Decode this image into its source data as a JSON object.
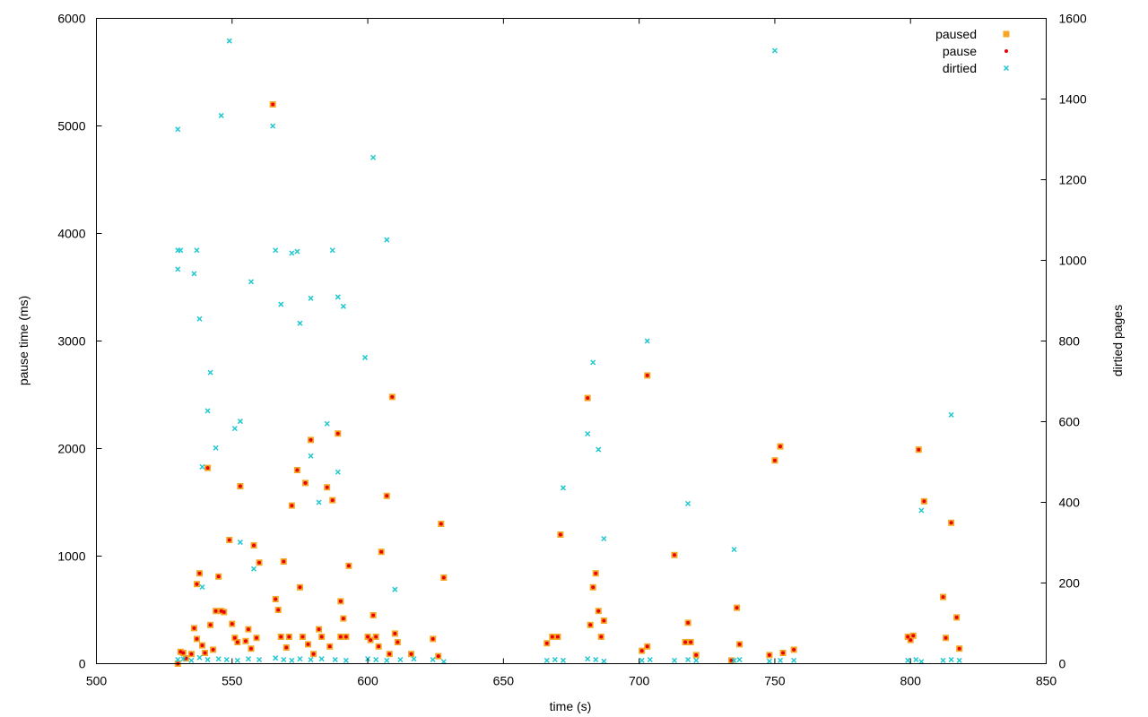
{
  "chart_data": {
    "type": "scatter",
    "xlabel": "time (s)",
    "ylabel": "pause time (ms)",
    "y2label": "dirtied pages",
    "xlim": [
      500,
      850
    ],
    "ylim": [
      0,
      6000
    ],
    "y2lim": [
      0,
      1600
    ],
    "xticks": [
      500,
      550,
      600,
      650,
      700,
      750,
      800,
      850
    ],
    "yticks": [
      0,
      1000,
      2000,
      3000,
      4000,
      5000,
      6000
    ],
    "y2ticks": [
      0,
      200,
      400,
      600,
      800,
      1000,
      1200,
      1400,
      1600
    ],
    "grid": false,
    "legend_position": "top-right",
    "colors": {
      "paused": "#f5a623",
      "pause": "#e8000b",
      "dirtied": "#1fc8d0"
    },
    "series": [
      {
        "name": "paused",
        "axis": "y",
        "marker": "square",
        "points": [
          [
            530,
            0
          ],
          [
            531,
            110
          ],
          [
            532,
            100
          ],
          [
            533,
            50
          ],
          [
            535,
            90
          ],
          [
            536,
            330
          ],
          [
            537,
            740
          ],
          [
            537,
            230
          ],
          [
            538,
            840
          ],
          [
            539,
            170
          ],
          [
            540,
            100
          ],
          [
            541,
            1820
          ],
          [
            542,
            360
          ],
          [
            543,
            130
          ],
          [
            544,
            490
          ],
          [
            545,
            810
          ],
          [
            546,
            490
          ],
          [
            547,
            480
          ],
          [
            549,
            1150
          ],
          [
            550,
            370
          ],
          [
            551,
            240
          ],
          [
            552,
            200
          ],
          [
            553,
            1650
          ],
          [
            555,
            210
          ],
          [
            556,
            320
          ],
          [
            557,
            140
          ],
          [
            558,
            1100
          ],
          [
            559,
            240
          ],
          [
            560,
            940
          ],
          [
            565,
            5200
          ],
          [
            566,
            600
          ],
          [
            567,
            500
          ],
          [
            568,
            250
          ],
          [
            569,
            950
          ],
          [
            570,
            150
          ],
          [
            571,
            250
          ],
          [
            572,
            1470
          ],
          [
            574,
            1800
          ],
          [
            575,
            710
          ],
          [
            576,
            250
          ],
          [
            577,
            1680
          ],
          [
            578,
            180
          ],
          [
            579,
            2080
          ],
          [
            580,
            90
          ],
          [
            582,
            320
          ],
          [
            583,
            250
          ],
          [
            585,
            1640
          ],
          [
            586,
            160
          ],
          [
            587,
            1520
          ],
          [
            589,
            2140
          ],
          [
            590,
            250
          ],
          [
            590,
            580
          ],
          [
            591,
            420
          ],
          [
            592,
            250
          ],
          [
            593,
            910
          ],
          [
            600,
            250
          ],
          [
            601,
            220
          ],
          [
            602,
            450
          ],
          [
            603,
            250
          ],
          [
            604,
            160
          ],
          [
            605,
            1040
          ],
          [
            607,
            1560
          ],
          [
            608,
            90
          ],
          [
            609,
            2480
          ],
          [
            610,
            280
          ],
          [
            611,
            200
          ],
          [
            616,
            90
          ],
          [
            624,
            230
          ],
          [
            626,
            70
          ],
          [
            627,
            1300
          ],
          [
            628,
            800
          ],
          [
            666,
            190
          ],
          [
            668,
            250
          ],
          [
            670,
            250
          ],
          [
            671,
            1200
          ],
          [
            681,
            2470
          ],
          [
            682,
            360
          ],
          [
            683,
            710
          ],
          [
            684,
            840
          ],
          [
            685,
            490
          ],
          [
            686,
            250
          ],
          [
            687,
            400
          ],
          [
            701,
            120
          ],
          [
            703,
            2680
          ],
          [
            703,
            160
          ],
          [
            713,
            1010
          ],
          [
            717,
            200
          ],
          [
            718,
            380
          ],
          [
            719,
            200
          ],
          [
            721,
            80
          ],
          [
            734,
            30
          ],
          [
            736,
            520
          ],
          [
            737,
            180
          ],
          [
            748,
            80
          ],
          [
            750,
            1890
          ],
          [
            752,
            2020
          ],
          [
            753,
            100
          ],
          [
            757,
            130
          ],
          [
            799,
            250
          ],
          [
            800,
            220
          ],
          [
            801,
            260
          ],
          [
            803,
            1990
          ],
          [
            805,
            1510
          ],
          [
            812,
            620
          ],
          [
            813,
            240
          ],
          [
            815,
            1310
          ],
          [
            817,
            430
          ],
          [
            818,
            140
          ]
        ]
      },
      {
        "name": "pause",
        "axis": "y",
        "marker": "dot",
        "points": [
          [
            530,
            0
          ],
          [
            531,
            110
          ],
          [
            532,
            100
          ],
          [
            533,
            50
          ],
          [
            535,
            90
          ],
          [
            536,
            330
          ],
          [
            537,
            740
          ],
          [
            537,
            230
          ],
          [
            538,
            840
          ],
          [
            539,
            170
          ],
          [
            540,
            100
          ],
          [
            541,
            1820
          ],
          [
            542,
            360
          ],
          [
            543,
            130
          ],
          [
            544,
            490
          ],
          [
            545,
            810
          ],
          [
            546,
            490
          ],
          [
            547,
            480
          ],
          [
            549,
            1150
          ],
          [
            550,
            370
          ],
          [
            551,
            240
          ],
          [
            552,
            200
          ],
          [
            553,
            1650
          ],
          [
            555,
            210
          ],
          [
            556,
            320
          ],
          [
            557,
            140
          ],
          [
            558,
            1100
          ],
          [
            559,
            240
          ],
          [
            560,
            940
          ],
          [
            565,
            5200
          ],
          [
            566,
            600
          ],
          [
            567,
            500
          ],
          [
            568,
            250
          ],
          [
            569,
            950
          ],
          [
            570,
            150
          ],
          [
            571,
            250
          ],
          [
            572,
            1470
          ],
          [
            574,
            1800
          ],
          [
            575,
            710
          ],
          [
            576,
            250
          ],
          [
            577,
            1680
          ],
          [
            578,
            180
          ],
          [
            579,
            2080
          ],
          [
            580,
            90
          ],
          [
            582,
            320
          ],
          [
            583,
            250
          ],
          [
            585,
            1640
          ],
          [
            586,
            160
          ],
          [
            587,
            1520
          ],
          [
            589,
            2140
          ],
          [
            590,
            250
          ],
          [
            590,
            580
          ],
          [
            591,
            420
          ],
          [
            592,
            250
          ],
          [
            593,
            910
          ],
          [
            600,
            250
          ],
          [
            601,
            220
          ],
          [
            602,
            450
          ],
          [
            603,
            250
          ],
          [
            604,
            160
          ],
          [
            605,
            1040
          ],
          [
            607,
            1560
          ],
          [
            608,
            90
          ],
          [
            609,
            2480
          ],
          [
            610,
            280
          ],
          [
            611,
            200
          ],
          [
            616,
            90
          ],
          [
            624,
            230
          ],
          [
            626,
            70
          ],
          [
            627,
            1300
          ],
          [
            628,
            800
          ],
          [
            666,
            190
          ],
          [
            668,
            250
          ],
          [
            670,
            250
          ],
          [
            671,
            1200
          ],
          [
            681,
            2470
          ],
          [
            682,
            360
          ],
          [
            683,
            710
          ],
          [
            684,
            840
          ],
          [
            685,
            490
          ],
          [
            686,
            250
          ],
          [
            687,
            400
          ],
          [
            701,
            120
          ],
          [
            703,
            2680
          ],
          [
            703,
            160
          ],
          [
            713,
            1010
          ],
          [
            717,
            200
          ],
          [
            718,
            380
          ],
          [
            719,
            200
          ],
          [
            721,
            80
          ],
          [
            734,
            30
          ],
          [
            736,
            520
          ],
          [
            737,
            180
          ],
          [
            748,
            80
          ],
          [
            750,
            1890
          ],
          [
            752,
            2020
          ],
          [
            753,
            100
          ],
          [
            757,
            130
          ],
          [
            799,
            250
          ],
          [
            800,
            220
          ],
          [
            801,
            260
          ],
          [
            803,
            1990
          ],
          [
            805,
            1510
          ],
          [
            812,
            620
          ],
          [
            813,
            240
          ],
          [
            815,
            1310
          ],
          [
            817,
            430
          ],
          [
            818,
            140
          ]
        ]
      },
      {
        "name": "dirtied",
        "axis": "y2",
        "marker": "cross",
        "points": [
          [
            530,
            1325
          ],
          [
            530,
            1025
          ],
          [
            531,
            1025
          ],
          [
            530,
            978
          ],
          [
            536,
            967
          ],
          [
            537,
            1025
          ],
          [
            538,
            855
          ],
          [
            539,
            488
          ],
          [
            539,
            190
          ],
          [
            541,
            627
          ],
          [
            542,
            722
          ],
          [
            544,
            535
          ],
          [
            546,
            1359
          ],
          [
            549,
            1544
          ],
          [
            551,
            583
          ],
          [
            553,
            601
          ],
          [
            553,
            301
          ],
          [
            557,
            947
          ],
          [
            558,
            235
          ],
          [
            565,
            1333
          ],
          [
            566,
            1025
          ],
          [
            568,
            891
          ],
          [
            572,
            1018
          ],
          [
            574,
            1022
          ],
          [
            575,
            844
          ],
          [
            579,
            906
          ],
          [
            579,
            515
          ],
          [
            582,
            400
          ],
          [
            585,
            595
          ],
          [
            587,
            1025
          ],
          [
            589,
            909
          ],
          [
            589,
            475
          ],
          [
            591,
            886
          ],
          [
            599,
            759
          ],
          [
            602,
            1255
          ],
          [
            607,
            1051
          ],
          [
            610,
            184
          ],
          [
            672,
            436
          ],
          [
            681,
            570
          ],
          [
            683,
            747
          ],
          [
            685,
            531
          ],
          [
            687,
            310
          ],
          [
            703,
            800
          ],
          [
            718,
            397
          ],
          [
            735,
            283
          ],
          [
            750,
            1520
          ],
          [
            804,
            380
          ],
          [
            815,
            617
          ],
          [
            530,
            10
          ],
          [
            532,
            12
          ],
          [
            535,
            8
          ],
          [
            538,
            15
          ],
          [
            541,
            10
          ],
          [
            545,
            12
          ],
          [
            548,
            10
          ],
          [
            552,
            8
          ],
          [
            556,
            12
          ],
          [
            560,
            10
          ],
          [
            566,
            14
          ],
          [
            569,
            10
          ],
          [
            572,
            8
          ],
          [
            575,
            12
          ],
          [
            579,
            10
          ],
          [
            583,
            12
          ],
          [
            588,
            10
          ],
          [
            592,
            8
          ],
          [
            600,
            12
          ],
          [
            603,
            10
          ],
          [
            607,
            8
          ],
          [
            612,
            10
          ],
          [
            617,
            12
          ],
          [
            624,
            10
          ],
          [
            628,
            5
          ],
          [
            666,
            8
          ],
          [
            669,
            10
          ],
          [
            672,
            8
          ],
          [
            681,
            12
          ],
          [
            684,
            10
          ],
          [
            687,
            6
          ],
          [
            701,
            8
          ],
          [
            704,
            10
          ],
          [
            713,
            8
          ],
          [
            718,
            10
          ],
          [
            721,
            8
          ],
          [
            735,
            8
          ],
          [
            737,
            10
          ],
          [
            748,
            6
          ],
          [
            752,
            8
          ],
          [
            757,
            8
          ],
          [
            799,
            8
          ],
          [
            802,
            10
          ],
          [
            804,
            5
          ],
          [
            812,
            8
          ],
          [
            815,
            10
          ],
          [
            818,
            8
          ]
        ]
      }
    ]
  }
}
